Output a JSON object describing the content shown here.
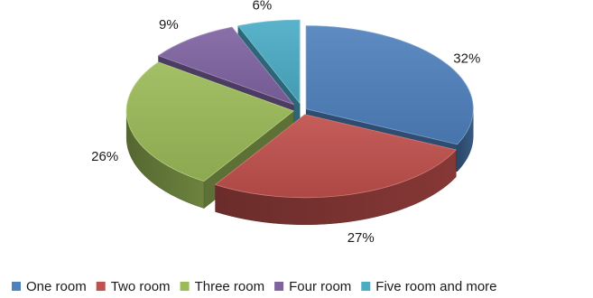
{
  "chart_data": {
    "type": "pie",
    "style": "3d-exploded",
    "legend_position": "bottom",
    "categories": [
      "One room",
      "Two room",
      "Three room",
      "Four room",
      "Five room and more"
    ],
    "values": [
      32,
      27,
      26,
      9,
      6
    ],
    "value_labels": [
      "32%",
      "27%",
      "26%",
      "9%",
      "6%"
    ],
    "colors": [
      "#4F81BD",
      "#C0504D",
      "#9BBB59",
      "#8064A2",
      "#4BACC6"
    ]
  }
}
